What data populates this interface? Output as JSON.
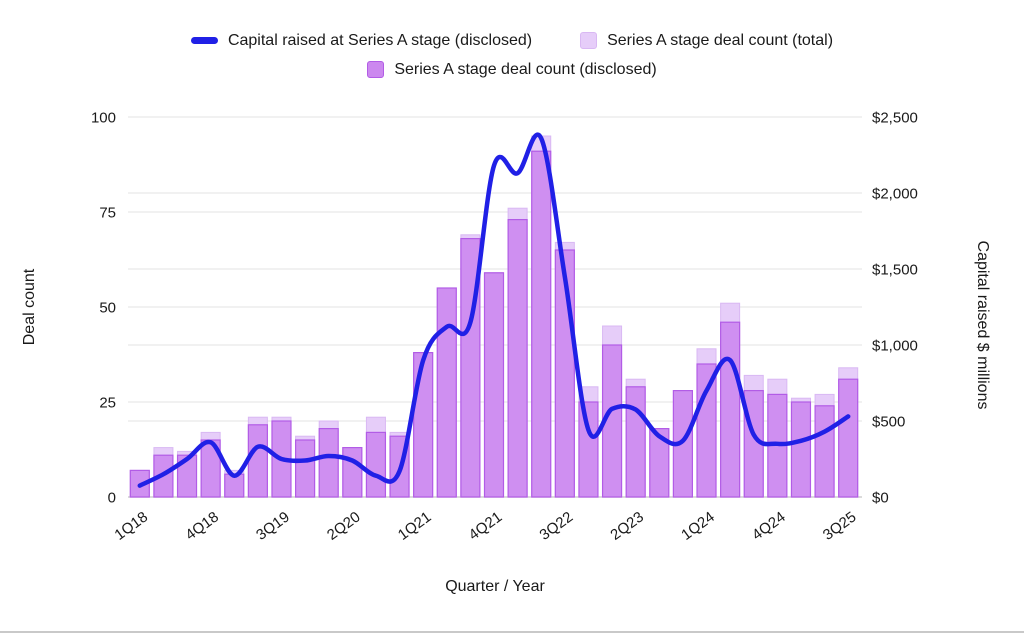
{
  "legend": {
    "line_label": "Capital raised at Series A stage (disclosed)",
    "total_label": "Series A stage deal count (total)",
    "disclosed_label": "Series A stage deal count (disclosed)"
  },
  "axes": {
    "left_title": "Deal count",
    "right_title": "Capital raised $ millions",
    "x_title": "Quarter / Year",
    "left_tick_labels": [
      "0",
      "25",
      "50",
      "75",
      "100"
    ],
    "right_tick_labels": [
      "$0",
      "$500",
      "$1,000",
      "$1,500",
      "$2,000",
      "$2,500"
    ]
  },
  "colors": {
    "line": "#2020e6",
    "bar_total_fill": "#e6cdf9",
    "bar_total_stroke": "#d9b8f3",
    "bar_disclosed_fill": "#cc88ef",
    "bar_disclosed_stroke": "#b25ce6",
    "gridline": "#e3e3e3",
    "baseline": "#cfcfcf",
    "text": "#1a1a1a"
  },
  "chart_data": {
    "type": "combo",
    "x": [
      "1Q18",
      "2Q18",
      "3Q18",
      "4Q18",
      "1Q19",
      "2Q19",
      "3Q19",
      "4Q19",
      "1Q20",
      "2Q20",
      "3Q20",
      "4Q20",
      "1Q21",
      "2Q21",
      "3Q21",
      "4Q21",
      "1Q22",
      "2Q22",
      "3Q22",
      "4Q22",
      "1Q23",
      "2Q23",
      "3Q23",
      "4Q23",
      "1Q24",
      "2Q24",
      "3Q24",
      "4Q24",
      "1Q25",
      "2Q25",
      "3Q25"
    ],
    "x_tick_labels": [
      "1Q18",
      "4Q18",
      "3Q19",
      "2Q20",
      "1Q21",
      "4Q21",
      "3Q22",
      "2Q23",
      "1Q24",
      "4Q24",
      "3Q25"
    ],
    "series": [
      {
        "name": "Series A stage deal count (total)",
        "type": "bar",
        "axis": "left",
        "values": [
          7,
          13,
          12,
          17,
          7,
          21,
          21,
          16,
          20,
          13,
          21,
          17,
          38,
          55,
          69,
          59,
          76,
          95,
          67,
          29,
          45,
          31,
          18,
          28,
          39,
          51,
          32,
          31,
          26,
          27,
          34
        ]
      },
      {
        "name": "Series A stage deal count (disclosed)",
        "type": "bar",
        "axis": "left",
        "values": [
          7,
          11,
          11,
          15,
          6,
          19,
          20,
          15,
          18,
          13,
          17,
          16,
          38,
          55,
          68,
          59,
          73,
          91,
          65,
          25,
          40,
          29,
          18,
          28,
          35,
          46,
          28,
          27,
          25,
          24,
          31
        ]
      },
      {
        "name": "Capital raised at Series A stage (disclosed)",
        "type": "line",
        "axis": "right",
        "values": [
          75,
          150,
          250,
          360,
          140,
          330,
          250,
          240,
          270,
          240,
          140,
          170,
          900,
          1120,
          1150,
          2180,
          2130,
          2360,
          1450,
          440,
          580,
          575,
          400,
          370,
          700,
          900,
          410,
          350,
          370,
          430,
          530
        ]
      }
    ],
    "left_axis": {
      "title": "Deal count",
      "range": [
        0,
        100
      ],
      "ticks": [
        0,
        25,
        50,
        75,
        100
      ]
    },
    "right_axis": {
      "title": "Capital raised $ millions",
      "range": [
        0,
        2500
      ],
      "ticks": [
        0,
        500,
        1000,
        1500,
        2000,
        2500
      ]
    },
    "x_axis": {
      "title": "Quarter / Year"
    },
    "grid": true,
    "legend_position": "top"
  }
}
